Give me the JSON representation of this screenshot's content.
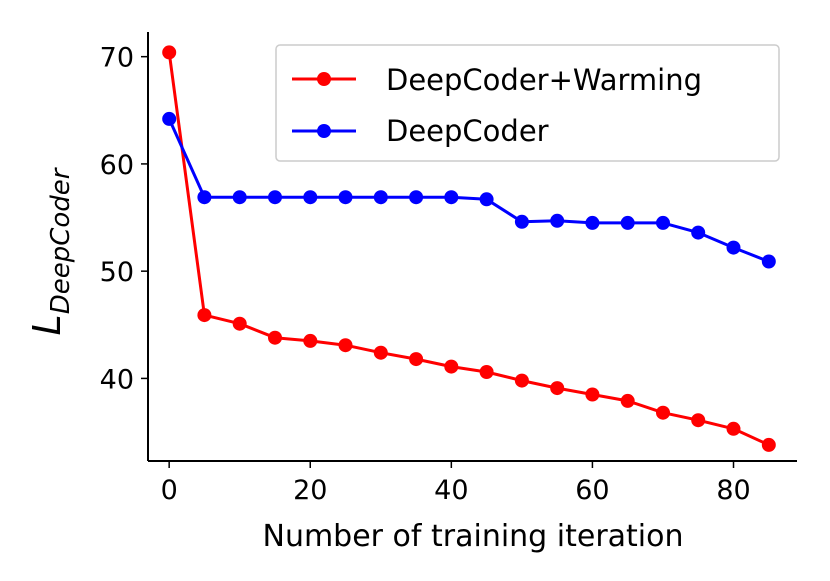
{
  "chart_data": {
    "type": "line",
    "title": "",
    "xlabel": "Number of training iteration",
    "ylabel_main": "L",
    "ylabel_sub": "DeepCoder",
    "xlim": [
      -3,
      89
    ],
    "ylim": [
      32.3,
      72.3
    ],
    "xticks": [
      0,
      20,
      40,
      60,
      80
    ],
    "yticks": [
      40,
      50,
      60,
      70
    ],
    "grid": false,
    "legend_position": "top-right",
    "x": [
      0,
      5,
      10,
      15,
      20,
      25,
      30,
      35,
      40,
      45,
      50,
      55,
      60,
      65,
      70,
      75,
      80,
      85
    ],
    "series": [
      {
        "name": "DeepCoder+Warming",
        "color": "#ff0000",
        "values": [
          70.4,
          45.9,
          45.1,
          43.8,
          43.5,
          43.1,
          42.4,
          41.8,
          41.1,
          40.6,
          39.8,
          39.1,
          38.5,
          37.9,
          36.8,
          36.1,
          35.3,
          33.8
        ]
      },
      {
        "name": "DeepCoder",
        "color": "#0000ff",
        "values": [
          64.2,
          56.9,
          56.9,
          56.9,
          56.9,
          56.9,
          56.9,
          56.9,
          56.9,
          56.7,
          54.6,
          54.7,
          54.5,
          54.5,
          54.5,
          53.6,
          52.2,
          50.9
        ]
      }
    ]
  }
}
